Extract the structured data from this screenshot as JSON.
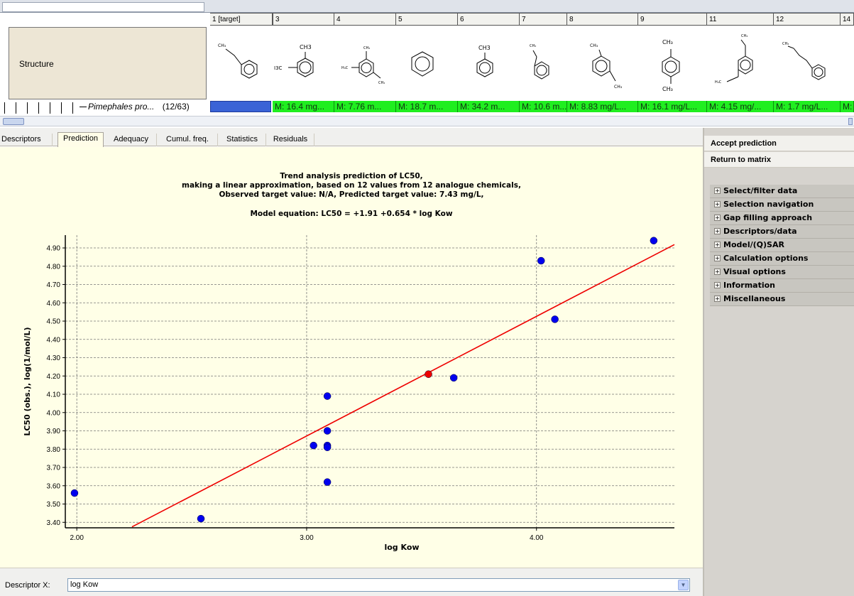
{
  "matrix": {
    "columns": [
      "1 [target]",
      "3",
      "4",
      "5",
      "6",
      "7",
      "8",
      "9",
      "11",
      "12",
      "14"
    ],
    "row_label": "Structure",
    "endpoint_label": "Pimephales pro...",
    "endpoint_count": "(12/63)",
    "values": [
      "M: 16.4 mg...",
      "M: 7.76 m...",
      "M: 18.7 m...",
      "M: 34.2 m...",
      "M: 10.6 m...",
      "M: 8.83 mg/L...",
      "M: 16.1 mg/L...",
      "M: 4.15 mg/...",
      "M: 1.7 mg/L...",
      "M:"
    ],
    "structure_labels": {
      "ch3": "CH₃",
      "ch3_plain": "CH3",
      "h3c": "H₃C",
      "h3c_plain": "H3C"
    }
  },
  "tabs": [
    "Descriptors",
    "Prediction",
    "Adequacy",
    "Cumul. freq.",
    "Statistics",
    "Residuals"
  ],
  "active_tab": "Prediction",
  "plot": {
    "title_lines": [
      "Trend analysis prediction of LC50,",
      "making a linear approximation, based on 12 values from 12 analogue chemicals,",
      "Observed target value: N/A, Predicted target value: 7.43 mg/L,"
    ],
    "equation": "Model equation:  LC50 = +1.91 +0.654 * log Kow"
  },
  "chart_data": {
    "type": "scatter",
    "xlabel": "log Kow",
    "ylabel": "LC50 (obs.), log(1/mol/L)",
    "xlim": [
      1.95,
      4.6
    ],
    "ylim": [
      3.37,
      4.97
    ],
    "x_ticks": [
      "2.00",
      "3.00",
      "4.00"
    ],
    "y_ticks": [
      "3.40",
      "3.50",
      "3.60",
      "3.70",
      "3.80",
      "3.90",
      "4.00",
      "4.10",
      "4.20",
      "4.30",
      "4.40",
      "4.50",
      "4.60",
      "4.70",
      "4.80",
      "4.90"
    ],
    "grid": true,
    "series": [
      {
        "color": "#0000ee",
        "points": [
          [
            1.99,
            3.56
          ],
          [
            2.54,
            3.42
          ],
          [
            3.03,
            3.82
          ],
          [
            3.09,
            3.82
          ],
          [
            3.09,
            3.81
          ],
          [
            3.09,
            3.9
          ],
          [
            3.09,
            4.09
          ],
          [
            3.09,
            3.62
          ],
          [
            3.64,
            4.19
          ],
          [
            4.02,
            4.83
          ],
          [
            4.08,
            4.51
          ],
          [
            4.51,
            4.94
          ]
        ]
      },
      {
        "color": "#ee0000",
        "points": [
          [
            3.53,
            4.21
          ]
        ]
      }
    ],
    "trend_line": {
      "color": "#ee0000",
      "intercept": 1.91,
      "slope": 0.654,
      "x_range": [
        2.24,
        4.6
      ]
    }
  },
  "footer": {
    "descriptor_label": "Descriptor X:",
    "descriptor_value": "log Kow"
  },
  "right_panel": {
    "actions": [
      "Accept prediction",
      "Return to matrix"
    ],
    "sections": [
      "Select/filter data",
      "Selection navigation",
      "Gap filling approach",
      "Descriptors/data",
      "Model/(Q)SAR",
      "Calculation options",
      "Visual options",
      "Information",
      "Miscellaneous"
    ]
  }
}
